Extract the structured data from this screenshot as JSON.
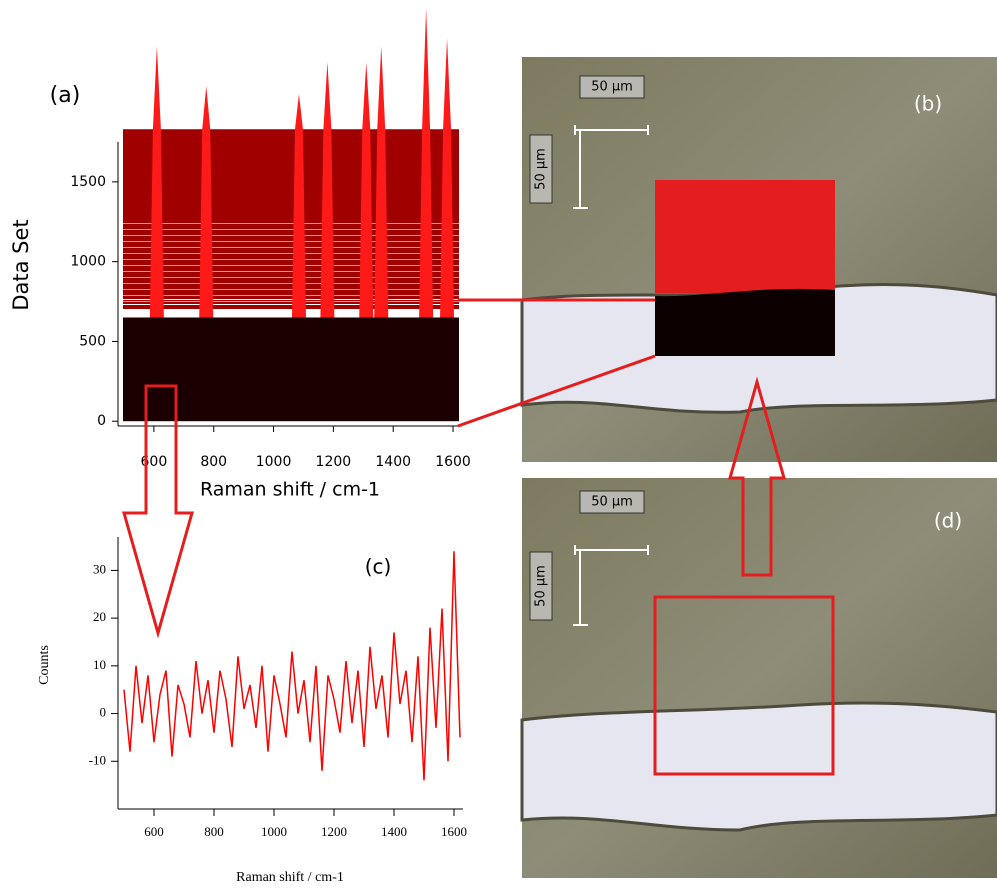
{
  "chart_data": [
    {
      "type": "spectra-map",
      "panel": "(a)",
      "xlabel": "Raman shift / cm-1",
      "ylabel": "Data Set",
      "xlim": [
        480,
        1630
      ],
      "ylim": [
        -30,
        2640
      ],
      "xticks": [
        600,
        800,
        1000,
        1200,
        1400,
        1600
      ],
      "yticks": [
        0,
        500,
        1000,
        1500
      ],
      "x": [
        610,
        775,
        1085,
        1180,
        1310,
        1360,
        1510,
        1580
      ],
      "values": [
        2350,
        2100,
        2050,
        2250,
        2250,
        2350,
        2590,
        2400
      ],
      "black_range": [
        0,
        650
      ],
      "red_range": [
        700,
        1830
      ],
      "color": "#d40000"
    },
    {
      "type": "line",
      "panel": "(c)",
      "xlabel": "Raman shift / cm-1",
      "ylabel": "Counts",
      "xlim": [
        480,
        1630
      ],
      "ylim": [
        -20,
        37
      ],
      "xticks": [
        600,
        800,
        1000,
        1200,
        1400,
        1600
      ],
      "yticks": [
        -10,
        0,
        10,
        20,
        30
      ],
      "x": [
        500,
        520,
        540,
        560,
        580,
        600,
        620,
        640,
        660,
        680,
        700,
        720,
        740,
        760,
        780,
        800,
        820,
        840,
        860,
        880,
        900,
        920,
        940,
        960,
        980,
        1000,
        1020,
        1040,
        1060,
        1080,
        1100,
        1120,
        1140,
        1160,
        1180,
        1200,
        1220,
        1240,
        1260,
        1280,
        1300,
        1320,
        1340,
        1360,
        1380,
        1400,
        1420,
        1440,
        1460,
        1480,
        1500,
        1520,
        1540,
        1560,
        1580,
        1600,
        1620
      ],
      "values": [
        5,
        -8,
        10,
        -2,
        8,
        -6,
        4,
        9,
        -9,
        6,
        2,
        -5,
        11,
        0,
        7,
        -4,
        9,
        3,
        -7,
        12,
        1,
        6,
        -3,
        10,
        -8,
        8,
        2,
        -5,
        13,
        0,
        7,
        -6,
        10,
        -12,
        8,
        3,
        -4,
        11,
        -2,
        9,
        -7,
        14,
        1,
        8,
        -5,
        17,
        2,
        9,
        -6,
        12,
        -14,
        18,
        -3,
        22,
        -10,
        34,
        -5
      ],
      "color": "#ff0000"
    }
  ],
  "images": {
    "b": {
      "panel": "(b)",
      "scale_x": "50 µm",
      "scale_y": "50 µm"
    },
    "d": {
      "panel": "(d)",
      "scale_x": "50 µm",
      "scale_y": "50 µm"
    }
  }
}
